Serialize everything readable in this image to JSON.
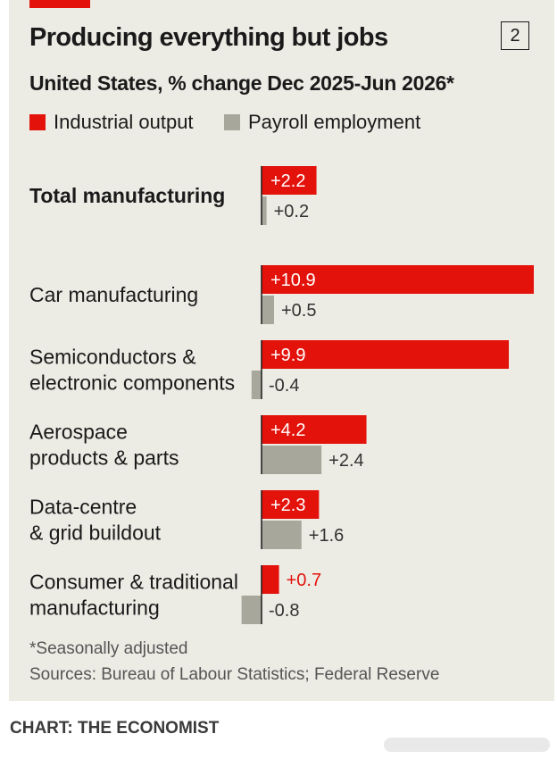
{
  "title": "Producing everything but jobs",
  "chart_number": "2",
  "subtitle": "United States, % change Dec 2025-Jun 2026*",
  "footnote": "*Seasonally adjusted",
  "sources": "Sources: Bureau of Labour Statistics; Federal Reserve",
  "credit": "CHART: THE ECONOMIST",
  "colors": {
    "industrial_output": "#e3120b",
    "payroll_employment": "#a8a79b",
    "panel_background": "#ecebe4"
  },
  "chart_data": {
    "type": "bar",
    "orientation": "horizontal",
    "categories": [
      [
        "Total manufacturing"
      ],
      [
        "Car manufacturing"
      ],
      [
        "Semiconductors &",
        "electronic components"
      ],
      [
        "Aerospace",
        "products & parts"
      ],
      [
        "Data-centre",
        "& grid buildout"
      ],
      [
        "Consumer & traditional",
        "manufacturing"
      ]
    ],
    "bold_categories": [
      0
    ],
    "series": [
      {
        "name": "Industrial output",
        "color": "#e3120b",
        "values": [
          2.2,
          10.9,
          9.9,
          4.2,
          2.3,
          0.7
        ],
        "labels": [
          "+2.2",
          "+10.9",
          "+9.9",
          "+4.2",
          "+2.3",
          "+0.7"
        ]
      },
      {
        "name": "Payroll employment",
        "color": "#a8a79b",
        "values": [
          0.2,
          0.5,
          -0.4,
          2.4,
          1.6,
          -0.8
        ],
        "labels": [
          "+0.2",
          "+0.5",
          "-0.4",
          "+2.4",
          "+1.6",
          "-0.8"
        ]
      }
    ],
    "xlim": [
      -0.8,
      10.9
    ],
    "grid": false,
    "legend_placement": "top-left"
  }
}
